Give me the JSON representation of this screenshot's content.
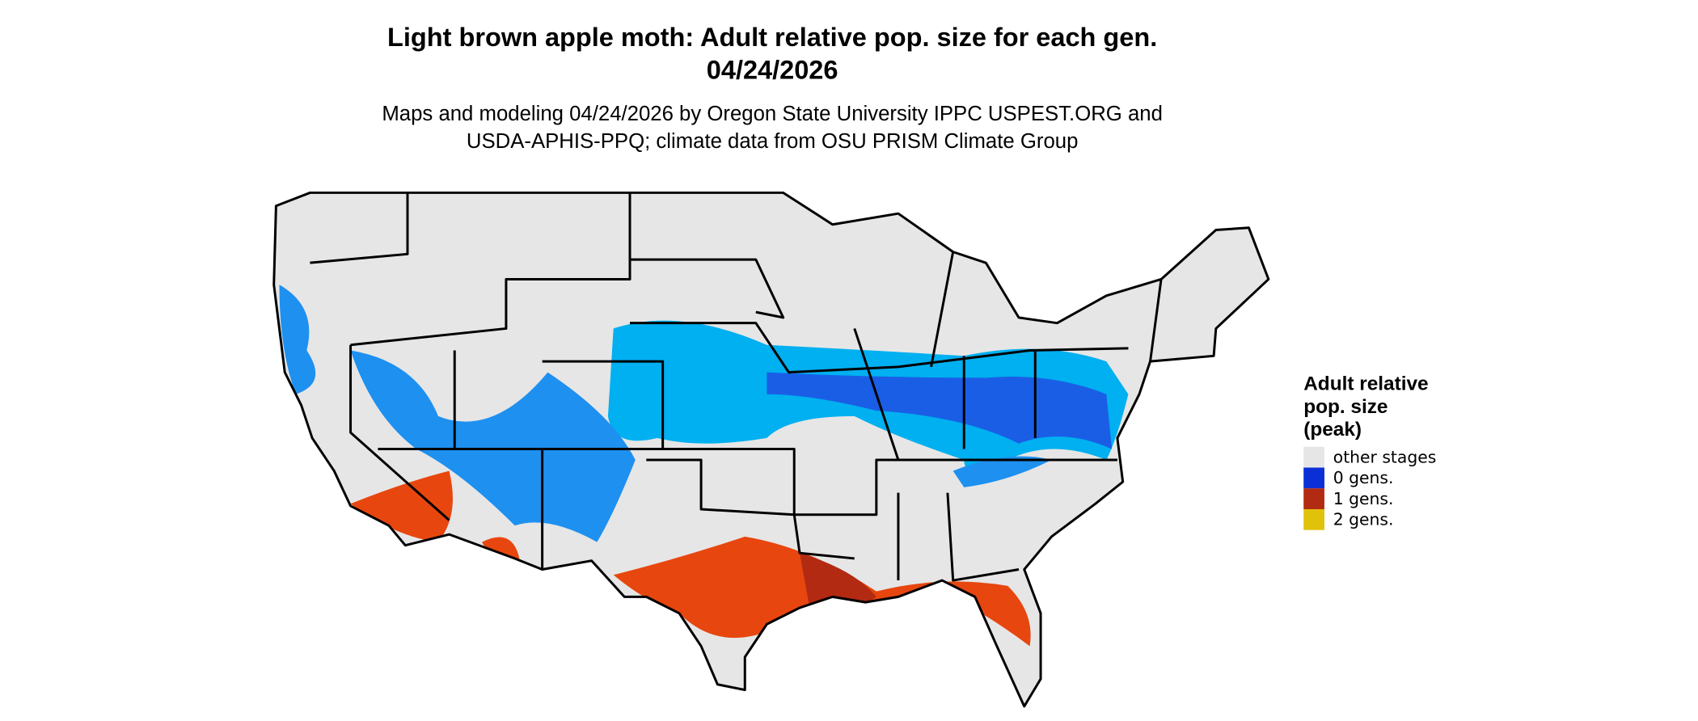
{
  "header": {
    "title": [
      "Light brown apple moth: Adult relative pop. size for each gen.",
      "04/24/2026"
    ],
    "subtitle": [
      "Maps and modeling 04/24/2026 by Oregon State University IPPC USPEST.ORG and",
      "USDA-APHIS-PPQ; climate data from OSU PRISM Climate Group"
    ]
  },
  "legend": {
    "title": [
      "Adult relative",
      "pop. size",
      "(peak)"
    ],
    "items": [
      {
        "label": "other stages",
        "color": "#e6e6e6"
      },
      {
        "label": "0 gens.",
        "color": "#0a2fd6"
      },
      {
        "label": "1 gens.",
        "color": "#b22a12"
      },
      {
        "label": "2 gens.",
        "color": "#e0c20a"
      }
    ]
  }
}
